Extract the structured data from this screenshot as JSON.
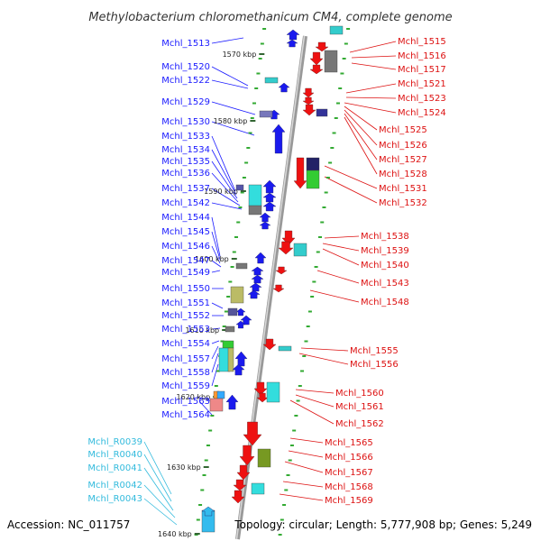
{
  "title": "Methylobacterium chloromethanicum CM4, complete genome",
  "footer": {
    "accession": "Accession: NC_011757",
    "summary": "Topology: circular; Length: 5,777,908 bp; Genes: 5,249"
  },
  "colors": {
    "left_label": "#1a1aff",
    "rna_label": "#33bbdd",
    "right_label": "#dd1111",
    "backbone": "#999999"
  },
  "kbp_ticks": [
    "1570 kbp",
    "1580 kbp",
    "1590 kbp",
    "1600 kbp",
    "1610 kbp",
    "1620 kbp",
    "1630 kbp",
    "1640 kbp"
  ],
  "left_labels": [
    "Mchl_1513",
    "Mchl_1520",
    "Mchl_1522",
    "Mchl_1529",
    "Mchl_1530",
    "Mchl_1533",
    "Mchl_1534",
    "Mchl_1535",
    "Mchl_1536",
    "Mchl_1537",
    "Mchl_1542",
    "Mchl_1544",
    "Mchl_1545",
    "Mchl_1546",
    "Mchl_1547",
    "Mchl_1549",
    "Mchl_1550",
    "Mchl_1551",
    "Mchl_1552",
    "Mchl_1553",
    "Mchl_1554",
    "Mchl_1557",
    "Mchl_1558",
    "Mchl_1559",
    "Mchl_1563",
    "Mchl_1564"
  ],
  "rna_labels": [
    "Mchl_R0039",
    "Mchl_R0040",
    "Mchl_R0041",
    "Mchl_R0042",
    "Mchl_R0043"
  ],
  "right_labels": [
    "Mchl_1515",
    "Mchl_1516",
    "Mchl_1517",
    "Mchl_1521",
    "Mchl_1523",
    "Mchl_1524",
    "Mchl_1525",
    "Mchl_1526",
    "Mchl_1527",
    "Mchl_1528",
    "Mchl_1531",
    "Mchl_1532",
    "Mchl_1538",
    "Mchl_1539",
    "Mchl_1540",
    "Mchl_1543",
    "Mchl_1548",
    "Mchl_1555",
    "Mchl_1556",
    "Mchl_1560",
    "Mchl_1561",
    "Mchl_1562",
    "Mchl_1565",
    "Mchl_1566",
    "Mchl_1567",
    "Mchl_1568",
    "Mchl_1569"
  ]
}
